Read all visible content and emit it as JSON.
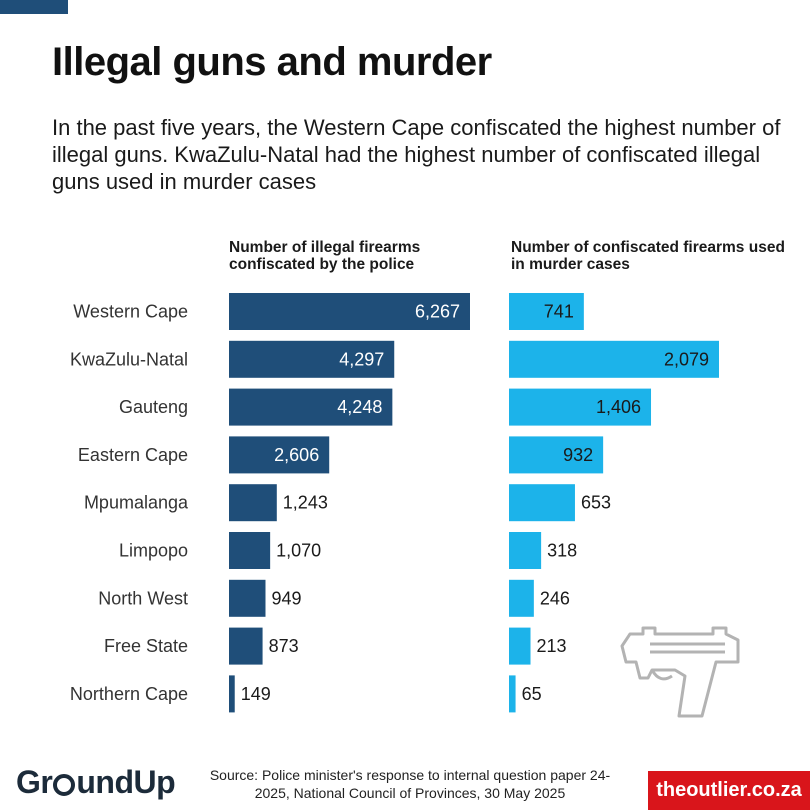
{
  "title": "Illegal guns and murder",
  "subtitle": "In the past five years, the Western Cape confiscated the highest number of illegal guns. KwaZulu-Natal had the highest number of confiscated illegal guns used in murder cases",
  "source": "Source: Police minister's response to internal question paper 24-2025, National Council of Provinces, 30 May 2025",
  "brand_left": {
    "pre": "Gr",
    "post": "undUp"
  },
  "brand_right": "theoutlier.co.za",
  "colors": {
    "confiscated": "#1f4e79",
    "murder": "#1cb3ea",
    "accent": "#d9151b"
  },
  "icons": [
    "pistol-icon"
  ],
  "chart_data": {
    "type": "bar",
    "orientation": "horizontal",
    "categories": [
      "Western Cape",
      "KwaZulu-Natal",
      "Gauteng",
      "Eastern Cape",
      "Mpumalanga",
      "Limpopo",
      "North West",
      "Free State",
      "Northern Cape"
    ],
    "series": [
      {
        "name": "Number of illegal firearms confiscated by the police",
        "values": [
          6267,
          4297,
          4248,
          2606,
          1243,
          1070,
          949,
          873,
          149
        ]
      },
      {
        "name": "Number of confiscated firearms used in murder cases",
        "values": [
          741,
          2079,
          1406,
          932,
          653,
          318,
          246,
          213,
          65
        ]
      }
    ],
    "value_labels": [
      [
        "6,267",
        "4,297",
        "4,248",
        "2,606",
        "1,243",
        "1,070",
        "949",
        "873",
        "149"
      ],
      [
        "741",
        "2,079",
        "1,406",
        "932",
        "653",
        "318",
        "246",
        "213",
        "65"
      ]
    ]
  }
}
